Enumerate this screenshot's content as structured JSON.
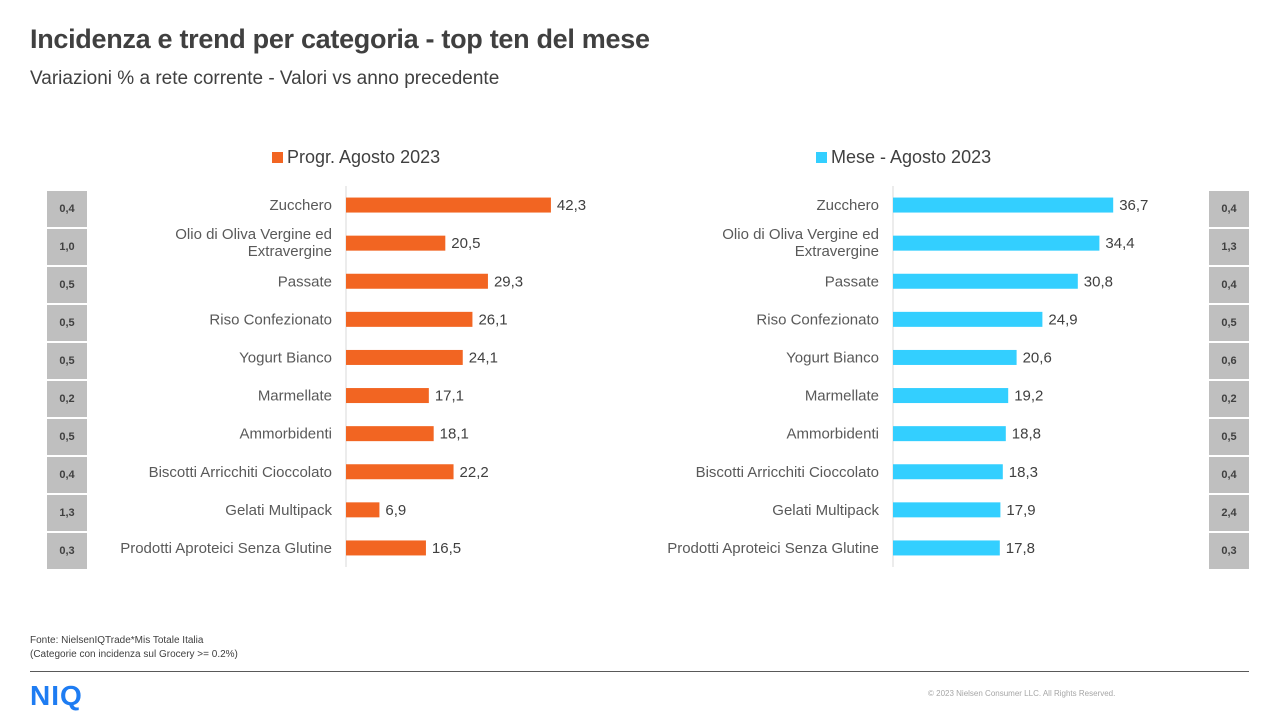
{
  "header": {
    "title": "Incidenza e trend per categoria - top ten del mese",
    "subtitle": "Variazioni  % a rete corrente - Valori vs anno precedente"
  },
  "colors": {
    "progr": "#f26522",
    "mese": "#33cfff",
    "incidence_bg": "#bfbfbf"
  },
  "chart_data": [
    {
      "type": "bar",
      "orientation": "horizontal",
      "legend": "Progr. Agosto 2023",
      "categories": [
        "Zucchero",
        "Olio di Oliva Vergine ed Extravergine",
        "Passate",
        "Riso Confezionato",
        "Yogurt Bianco",
        "Marmellate",
        "Ammorbidenti",
        "Biscotti Arricchiti Cioccolato",
        "Gelati Multipack",
        "Prodotti Aproteici Senza Glutine"
      ],
      "values": [
        42.3,
        20.5,
        29.3,
        26.1,
        24.1,
        17.1,
        18.1,
        22.2,
        6.9,
        16.5
      ],
      "labels": [
        "42,3",
        "20,5",
        "29,3",
        "26,1",
        "24,1",
        "17,1",
        "18,1",
        "22,2",
        "6,9",
        "16,5"
      ],
      "incidence": [
        "0,4",
        "1,0",
        "0,5",
        "0,5",
        "0,5",
        "0,2",
        "0,5",
        "0,4",
        "1,3",
        "0,3"
      ],
      "xlim": [
        0,
        45
      ]
    },
    {
      "type": "bar",
      "orientation": "horizontal",
      "legend": "Mese - Agosto 2023",
      "categories": [
        "Zucchero",
        "Olio di Oliva Vergine ed Extravergine",
        "Passate",
        "Riso Confezionato",
        "Yogurt Bianco",
        "Marmellate",
        "Ammorbidenti",
        "Biscotti Arricchiti Cioccolato",
        "Gelati Multipack",
        "Prodotti Aproteici Senza Glutine"
      ],
      "values": [
        36.7,
        34.4,
        30.8,
        24.9,
        20.6,
        19.2,
        18.8,
        18.3,
        17.9,
        17.8
      ],
      "labels": [
        "36,7",
        "34,4",
        "30,8",
        "24,9",
        "20,6",
        "19,2",
        "18,8",
        "18,3",
        "17,9",
        "17,8"
      ],
      "incidence": [
        "0,4",
        "1,3",
        "0,4",
        "0,5",
        "0,6",
        "0,2",
        "0,5",
        "0,4",
        "2,4",
        "0,3"
      ],
      "xlim": [
        0,
        39
      ]
    }
  ],
  "footer": {
    "source_line1": "Fonte: NielsenIQTrade*Mis Totale Italia",
    "source_line2": "(Categorie con incidenza sul Grocery >= 0.2%)",
    "logo": "NIQ",
    "copyright": "© 2023 Nielsen Consumer LLC. All Rights Reserved."
  }
}
